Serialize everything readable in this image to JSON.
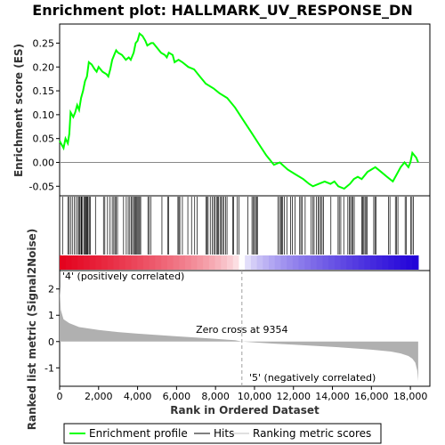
{
  "chart_data": {
    "type": "line",
    "title": "Enrichment plot: HALLMARK_UV_RESPONSE_DN",
    "panels": {
      "enrichment": {
        "ylabel": "Enrichment score (ES)",
        "ylim": [
          -0.07,
          0.29
        ],
        "yticks": [
          -0.05,
          0.0,
          0.05,
          0.1,
          0.15,
          0.2,
          0.25
        ],
        "ytick_labels": [
          "-0.05",
          "0.00",
          "0.05",
          "0.10",
          "0.15",
          "0.20",
          "0.25"
        ],
        "series": [
          {
            "name": "Enrichment profile",
            "color": "#00ff00",
            "points": [
              [
                0,
                0.045
              ],
              [
                200,
                0.03
              ],
              [
                300,
                0.05
              ],
              [
                420,
                0.04
              ],
              [
                500,
                0.06
              ],
              [
                560,
                0.105
              ],
              [
                700,
                0.095
              ],
              [
                800,
                0.105
              ],
              [
                900,
                0.12
              ],
              [
                1000,
                0.11
              ],
              [
                1100,
                0.135
              ],
              [
                1200,
                0.15
              ],
              [
                1300,
                0.17
              ],
              [
                1400,
                0.18
              ],
              [
                1500,
                0.21
              ],
              [
                1650,
                0.205
              ],
              [
                1800,
                0.195
              ],
              [
                1900,
                0.19
              ],
              [
                2000,
                0.2
              ],
              [
                2200,
                0.19
              ],
              [
                2400,
                0.185
              ],
              [
                2500,
                0.18
              ],
              [
                2600,
                0.195
              ],
              [
                2700,
                0.215
              ],
              [
                2800,
                0.225
              ],
              [
                2900,
                0.235
              ],
              [
                3000,
                0.23
              ],
              [
                3200,
                0.225
              ],
              [
                3400,
                0.215
              ],
              [
                3550,
                0.22
              ],
              [
                3650,
                0.215
              ],
              [
                3800,
                0.23
              ],
              [
                3900,
                0.25
              ],
              [
                4000,
                0.255
              ],
              [
                4100,
                0.27
              ],
              [
                4250,
                0.265
              ],
              [
                4400,
                0.255
              ],
              [
                4500,
                0.245
              ],
              [
                4700,
                0.25
              ],
              [
                4800,
                0.25
              ],
              [
                5000,
                0.24
              ],
              [
                5200,
                0.23
              ],
              [
                5400,
                0.225
              ],
              [
                5500,
                0.22
              ],
              [
                5600,
                0.23
              ],
              [
                5800,
                0.225
              ],
              [
                5900,
                0.21
              ],
              [
                6100,
                0.215
              ],
              [
                6300,
                0.21
              ],
              [
                6600,
                0.2
              ],
              [
                6900,
                0.195
              ],
              [
                7200,
                0.18
              ],
              [
                7500,
                0.165
              ],
              [
                7900,
                0.155
              ],
              [
                8200,
                0.145
              ],
              [
                8600,
                0.135
              ],
              [
                9000,
                0.115
              ],
              [
                9400,
                0.09
              ],
              [
                9800,
                0.065
              ],
              [
                10200,
                0.04
              ],
              [
                10600,
                0.015
              ],
              [
                11000,
                -0.005
              ],
              [
                11300,
                0.0
              ],
              [
                11700,
                -0.015
              ],
              [
                12100,
                -0.025
              ],
              [
                12500,
                -0.035
              ],
              [
                12800,
                -0.045
              ],
              [
                13000,
                -0.05
              ],
              [
                13300,
                -0.045
              ],
              [
                13600,
                -0.04
              ],
              [
                13900,
                -0.045
              ],
              [
                14100,
                -0.04
              ],
              [
                14300,
                -0.05
              ],
              [
                14600,
                -0.055
              ],
              [
                14900,
                -0.045
              ],
              [
                15100,
                -0.035
              ],
              [
                15300,
                -0.03
              ],
              [
                15500,
                -0.035
              ],
              [
                15800,
                -0.02
              ],
              [
                16000,
                -0.015
              ],
              [
                16200,
                -0.01
              ],
              [
                16500,
                -0.02
              ],
              [
                16800,
                -0.03
              ],
              [
                17100,
                -0.04
              ],
              [
                17300,
                -0.025
              ],
              [
                17500,
                -0.01
              ],
              [
                17700,
                0.0
              ],
              [
                17900,
                -0.01
              ],
              [
                18000,
                0.0
              ],
              [
                18100,
                0.02
              ],
              [
                18300,
                0.01
              ],
              [
                18400,
                0.0
              ]
            ]
          }
        ]
      },
      "hits": {
        "gene_ranks": [
          150,
          420,
          480,
          560,
          650,
          760,
          840,
          930,
          1000,
          1040,
          1100,
          1130,
          1180,
          1250,
          1300,
          1340,
          1380,
          1420,
          1460,
          1520,
          1570,
          1840,
          2250,
          2320,
          2460,
          2590,
          2700,
          2780,
          2840,
          2900,
          2970,
          3280,
          3420,
          3520,
          3600,
          3680,
          3740,
          3800,
          3850,
          3910,
          3960,
          4010,
          4060,
          4110,
          4160,
          4530,
          4590,
          4680,
          5250,
          5540,
          5590,
          6070,
          6120,
          6170,
          6300,
          6580,
          6770,
          6930,
          7060,
          7510,
          7570,
          7620,
          7730,
          7840,
          7910,
          7980,
          8050,
          8100,
          8150,
          8230,
          8300,
          8360,
          8430,
          8520,
          8590,
          8880,
          8930,
          9120,
          9200,
          9660,
          9870,
          9930,
          10000,
          10050,
          10110,
          10150,
          11200,
          11280,
          11340,
          11400,
          11450,
          11540,
          11660,
          11850,
          11940,
          12080,
          12320,
          12380,
          12440,
          12600,
          12900,
          13000,
          13060,
          13180,
          13260,
          13330,
          13400,
          13470,
          13540,
          13920,
          14290,
          14350,
          14430,
          14580,
          14790,
          14870,
          14930,
          14990,
          15050,
          15120,
          15500,
          15550,
          15610,
          15670,
          15720,
          15780,
          16120,
          16180,
          16240,
          16880,
          16950,
          17230,
          17290,
          17360,
          17730,
          17790,
          18010,
          18080,
          18150
        ]
      },
      "ranking": {
        "ylabel": "Ranked list metric (Signal2Noise)",
        "ylim": [
          -1.7,
          2.7
        ],
        "yticks": [
          -1,
          0,
          1,
          2
        ],
        "ytick_labels": [
          "-1",
          "0",
          "1",
          "2"
        ],
        "metric_points": [
          [
            0,
            2.1
          ],
          [
            60,
            1.2
          ],
          [
            200,
            0.85
          ],
          [
            500,
            0.7
          ],
          [
            1000,
            0.55
          ],
          [
            2000,
            0.44
          ],
          [
            3000,
            0.36
          ],
          [
            4000,
            0.3
          ],
          [
            5000,
            0.25
          ],
          [
            6000,
            0.2
          ],
          [
            7000,
            0.15
          ],
          [
            8000,
            0.1
          ],
          [
            9000,
            0.05
          ],
          [
            9354,
            0.0
          ],
          [
            10000,
            -0.03
          ],
          [
            11000,
            -0.08
          ],
          [
            12000,
            -0.12
          ],
          [
            13000,
            -0.16
          ],
          [
            14000,
            -0.2
          ],
          [
            15000,
            -0.25
          ],
          [
            16000,
            -0.31
          ],
          [
            17000,
            -0.38
          ],
          [
            17500,
            -0.45
          ],
          [
            17900,
            -0.55
          ],
          [
            18100,
            -0.65
          ],
          [
            18250,
            -0.8
          ],
          [
            18350,
            -1.1
          ],
          [
            18400,
            -1.5
          ]
        ],
        "zero_cross_label": "Zero cross at 9354",
        "zero_cross": 9354,
        "positive_label": "'4' (positively correlated)",
        "negative_label": "'5' (negatively correlated)"
      }
    },
    "xlabel": "Rank in Ordered Dataset",
    "xlim": [
      0,
      19000
    ],
    "xticks": [
      0,
      2000,
      4000,
      6000,
      8000,
      10000,
      12000,
      14000,
      16000,
      18000
    ],
    "xtick_labels": [
      "0",
      "2,000",
      "4,000",
      "6,000",
      "8,000",
      "10,000",
      "12,000",
      "14,000",
      "16,000",
      "18,000"
    ],
    "n_genes": 18400,
    "legend": {
      "placement": "bottom",
      "items": [
        {
          "label": "Enrichment profile",
          "color": "#00ff00"
        },
        {
          "label": "Hits",
          "color": "#000000"
        },
        {
          "label": "Ranking metric scores",
          "color": "#c0c0c0"
        }
      ]
    },
    "colors": {
      "profile": "#00ff00",
      "positive_text": "#cc0000",
      "negative_text": "#0000cc",
      "metric_fill": "#b0b0b0",
      "heatmap_red": "#e4001c",
      "heatmap_blue": "#2000d8"
    }
  }
}
